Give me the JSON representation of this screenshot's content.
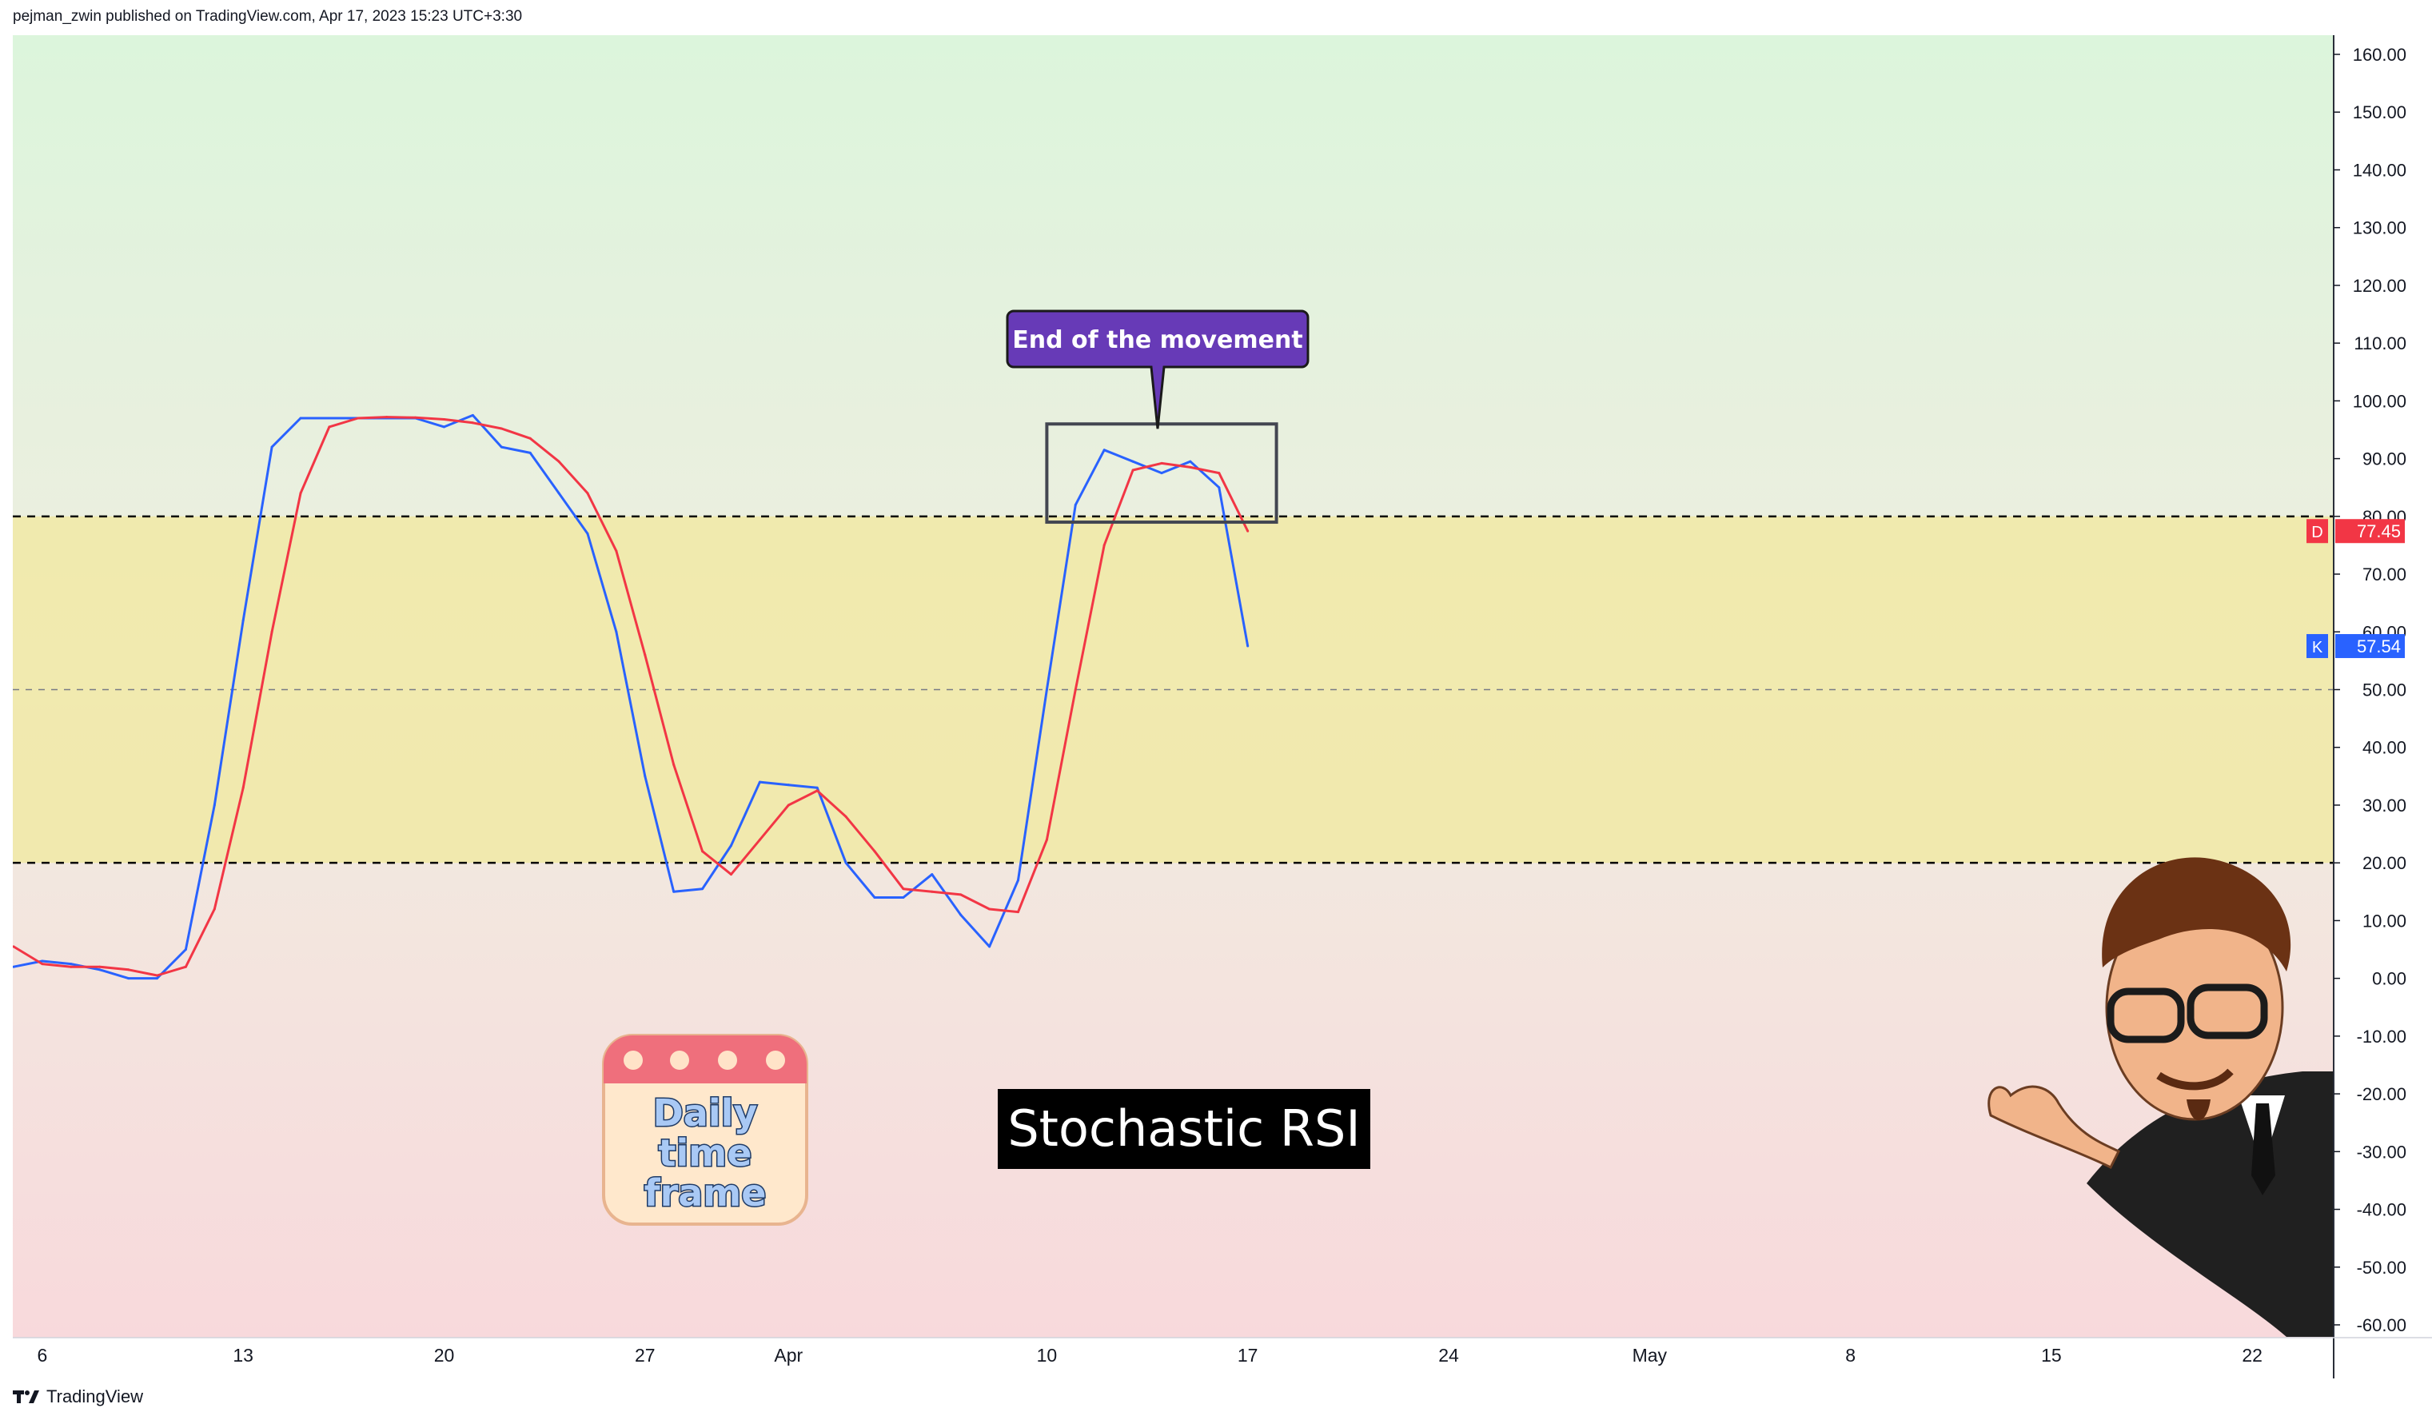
{
  "header": {
    "publish_text": "pejman_zwin published on TradingView.com, Apr 17, 2023 15:23 UTC+3:30"
  },
  "footer": {
    "brand": "TradingView"
  },
  "chart_data": {
    "type": "line",
    "title": "Stochastic RSI",
    "subtitle": "",
    "xlabel": "",
    "ylabel": "",
    "ylim": [
      -60,
      160
    ],
    "y_ticks": [
      "160.00",
      "150.00",
      "140.00",
      "130.00",
      "120.00",
      "110.00",
      "100.00",
      "90.00",
      "80.00",
      "70.00",
      "60.00",
      "50.00",
      "40.00",
      "30.00",
      "20.00",
      "10.00",
      "0.00",
      "-10.00",
      "-20.00",
      "-30.00",
      "-40.00",
      "-50.00",
      "-60.00"
    ],
    "x_ticks": [
      {
        "label": "6",
        "date": "2023-03-06"
      },
      {
        "label": "13",
        "date": "2023-03-13"
      },
      {
        "label": "20",
        "date": "2023-03-20"
      },
      {
        "label": "27",
        "date": "2023-03-27"
      },
      {
        "label": "Apr",
        "date": "2023-04-01"
      },
      {
        "label": "10",
        "date": "2023-04-10"
      },
      {
        "label": "17",
        "date": "2023-04-17"
      },
      {
        "label": "24",
        "date": "2023-04-24"
      },
      {
        "label": "May",
        "date": "2023-05-01"
      },
      {
        "label": "8",
        "date": "2023-05-08"
      },
      {
        "label": "15",
        "date": "2023-05-15"
      },
      {
        "label": "22",
        "date": "2023-05-22"
      }
    ],
    "x_range": [
      "2023-03-05",
      "2023-05-26"
    ],
    "x": [
      "2023-03-05",
      "2023-03-06",
      "2023-03-07",
      "2023-03-08",
      "2023-03-09",
      "2023-03-10",
      "2023-03-11",
      "2023-03-12",
      "2023-03-13",
      "2023-03-14",
      "2023-03-15",
      "2023-03-16",
      "2023-03-17",
      "2023-03-18",
      "2023-03-19",
      "2023-03-20",
      "2023-03-21",
      "2023-03-22",
      "2023-03-23",
      "2023-03-24",
      "2023-03-25",
      "2023-03-26",
      "2023-03-27",
      "2023-03-28",
      "2023-03-29",
      "2023-03-30",
      "2023-03-31",
      "2023-04-01",
      "2023-04-02",
      "2023-04-03",
      "2023-04-04",
      "2023-04-05",
      "2023-04-06",
      "2023-04-07",
      "2023-04-08",
      "2023-04-09",
      "2023-04-10",
      "2023-04-11",
      "2023-04-12",
      "2023-04-13",
      "2023-04-14",
      "2023-04-15",
      "2023-04-16",
      "2023-04-17"
    ],
    "series": [
      {
        "name": "K",
        "color": "#2962ff",
        "values": [
          2,
          3,
          2.5,
          1.5,
          0,
          0,
          5,
          30,
          62,
          92,
          97,
          97,
          97,
          97,
          97,
          95.5,
          97.5,
          92,
          91,
          84,
          77,
          60,
          35,
          15,
          15.5,
          23,
          34,
          33.5,
          33,
          20,
          14,
          14,
          18,
          11,
          5.5,
          17,
          50,
          82,
          91.5,
          89.5,
          87.5,
          89.5,
          85,
          57.54
        ]
      },
      {
        "name": "D",
        "color": "#f23645",
        "values": [
          5.5,
          2.5,
          2,
          2,
          1.5,
          0.5,
          2,
          12,
          33,
          60,
          84,
          95.5,
          97,
          97.2,
          97.1,
          96.8,
          96.2,
          95.2,
          93.5,
          89.5,
          84,
          74,
          56,
          37,
          22,
          18,
          24,
          30,
          32.5,
          28,
          22,
          15.5,
          15,
          14.5,
          12,
          11.5,
          24,
          50,
          75,
          88,
          89.2,
          88.5,
          87.5,
          77.45
        ]
      }
    ],
    "levels": [
      80,
      50,
      20
    ],
    "zones": {
      "top": "#dcf5dc",
      "middle": "#f1e9a6",
      "bottom": "#f8d9dc"
    },
    "last_value_tags": [
      {
        "letter": "D",
        "value": "77.45",
        "color": "#f23645"
      },
      {
        "letter": "K",
        "value": "57.54",
        "color": "#2962ff"
      }
    ],
    "annotations": {
      "callout": {
        "text": "End of the movement",
        "color": "#673ab7"
      },
      "box_date_range": [
        "2023-04-10",
        "2023-04-18"
      ],
      "box_value_range": [
        79,
        96
      ],
      "title_label": {
        "text": "Stochastic RSI",
        "background": "#000000"
      },
      "sticker": {
        "lines": [
          "Daily",
          "time",
          "frame"
        ]
      }
    },
    "grid": false,
    "legend": "none"
  }
}
